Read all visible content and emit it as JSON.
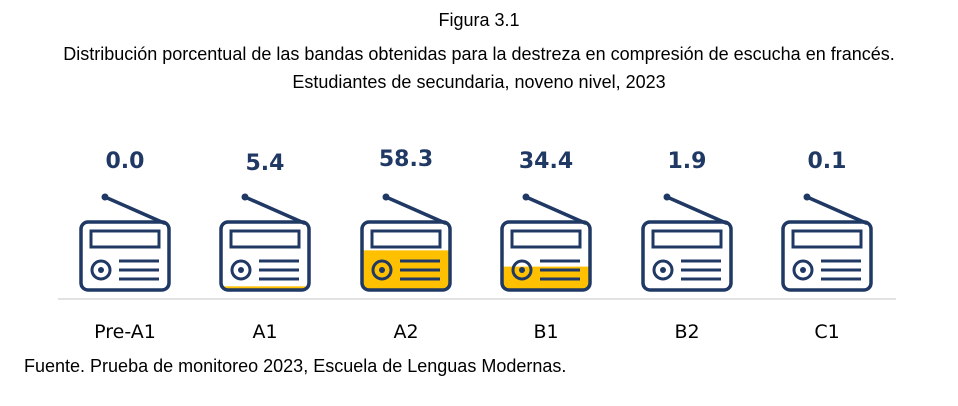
{
  "figure": {
    "label": "Figura 3.1",
    "title": "Distribución porcentual de las bandas obtenidas para la destreza en compresión de escucha en francés. Estudiantes de secundaria, noveno nivel, 2023",
    "source": "Fuente. Prueba de monitoreo 2023, Escuela de Lenguas Modernas."
  },
  "chart_data": {
    "type": "bar",
    "title": "Distribución porcentual de las bandas obtenidas para la destreza en compresión de escucha en francés. Estudiantes de secundaria, noveno nivel, 2023",
    "categories": [
      "Pre-A1",
      "A1",
      "A2",
      "B1",
      "B2",
      "C1"
    ],
    "values": [
      0.0,
      5.4,
      58.3,
      34.4,
      1.9,
      0.1
    ],
    "value_labels": [
      "0.0",
      "5.4",
      "58.3",
      "34.4",
      "1.9",
      "0.1"
    ],
    "ylim": [
      0,
      100
    ],
    "xlabel": "",
    "ylabel": "",
    "icon": "radio-icon",
    "colors": {
      "outline": "#1f3864",
      "fill": "#ffc000",
      "value_text": "#1f3864",
      "baseline": "#d9d9d9"
    }
  }
}
